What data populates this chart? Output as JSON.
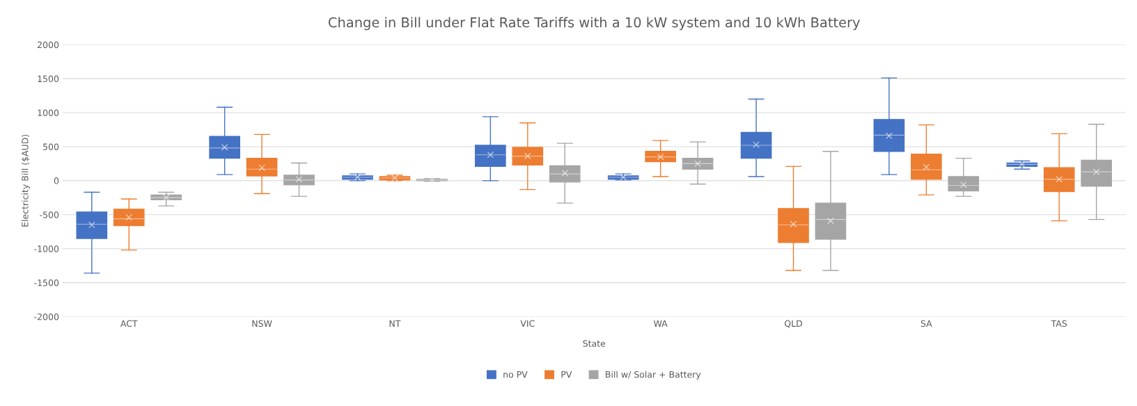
{
  "chart_data": {
    "type": "box",
    "title": "Change in Bill under Flat Rate Tariffs with a 10 kW system and 10 kWh Battery",
    "xlabel": "State",
    "ylabel": "Electricity Bill ($AUD)",
    "categories": [
      "ACT",
      "NSW",
      "NT",
      "VIC",
      "WA",
      "QLD",
      "SA",
      "TAS"
    ],
    "ylim": [
      -2000,
      2000
    ],
    "yticks": [
      -2000,
      -1500,
      -1000,
      -500,
      0,
      500,
      1000,
      1500,
      2000
    ],
    "grid": "y",
    "legend": "bottom",
    "series": [
      {
        "name": "no PV",
        "color": "#4472c4",
        "boxes": [
          {
            "low": -1360,
            "q1": -850,
            "median": -640,
            "q3": -460,
            "high": -170,
            "mean": -650
          },
          {
            "low": 90,
            "q1": 330,
            "median": 480,
            "q3": 650,
            "high": 1080,
            "mean": 490
          },
          {
            "low": 0,
            "q1": 20,
            "median": 50,
            "q3": 70,
            "high": 100,
            "mean": 50
          },
          {
            "low": 0,
            "q1": 210,
            "median": 380,
            "q3": 520,
            "high": 940,
            "mean": 380
          },
          {
            "low": 10,
            "q1": 20,
            "median": 50,
            "q3": 70,
            "high": 100,
            "mean": 50
          },
          {
            "low": 60,
            "q1": 330,
            "median": 520,
            "q3": 710,
            "high": 1200,
            "mean": 530
          },
          {
            "low": 90,
            "q1": 430,
            "median": 670,
            "q3": 900,
            "high": 1510,
            "mean": 660
          },
          {
            "low": 170,
            "q1": 210,
            "median": 240,
            "q3": 260,
            "high": 290,
            "mean": 240
          }
        ]
      },
      {
        "name": "PV",
        "color": "#ed7d31",
        "boxes": [
          {
            "low": -1020,
            "q1": -660,
            "median": -560,
            "q3": -420,
            "high": -270,
            "mean": -540
          },
          {
            "low": -190,
            "q1": 70,
            "median": 170,
            "q3": 330,
            "high": 680,
            "mean": 190
          },
          {
            "low": 0,
            "q1": 10,
            "median": 40,
            "q3": 60,
            "high": 80,
            "mean": 40
          },
          {
            "low": -130,
            "q1": 230,
            "median": 360,
            "q3": 490,
            "high": 850,
            "mean": 360
          },
          {
            "low": 60,
            "q1": 280,
            "median": 350,
            "q3": 430,
            "high": 590,
            "mean": 350
          },
          {
            "low": -1320,
            "q1": -910,
            "median": -650,
            "q3": -410,
            "high": 210,
            "mean": -640
          },
          {
            "low": -210,
            "q1": 20,
            "median": 160,
            "q3": 390,
            "high": 820,
            "mean": 200
          },
          {
            "low": -590,
            "q1": -160,
            "median": 20,
            "q3": 190,
            "high": 690,
            "mean": 20
          }
        ]
      },
      {
        "name": "Bill w/ Solar + Battery",
        "color": "#a5a5a5",
        "boxes": [
          {
            "low": -370,
            "q1": -280,
            "median": -250,
            "q3": -210,
            "high": -170,
            "mean": -250
          },
          {
            "low": -230,
            "q1": -60,
            "median": 10,
            "q3": 80,
            "high": 260,
            "mean": 20
          },
          {
            "low": -10,
            "q1": 0,
            "median": 10,
            "q3": 20,
            "high": 30,
            "mean": 10
          },
          {
            "low": -330,
            "q1": -20,
            "median": 100,
            "q3": 220,
            "high": 550,
            "mean": 110
          },
          {
            "low": -50,
            "q1": 170,
            "median": 250,
            "q3": 330,
            "high": 570,
            "mean": 250
          },
          {
            "low": -1320,
            "q1": -860,
            "median": -570,
            "q3": -330,
            "high": 430,
            "mean": -590
          },
          {
            "low": -230,
            "q1": -150,
            "median": -70,
            "q3": 60,
            "high": 330,
            "mean": -60
          },
          {
            "low": -570,
            "q1": -80,
            "median": 130,
            "q3": 300,
            "high": 830,
            "mean": 130
          }
        ]
      }
    ]
  }
}
